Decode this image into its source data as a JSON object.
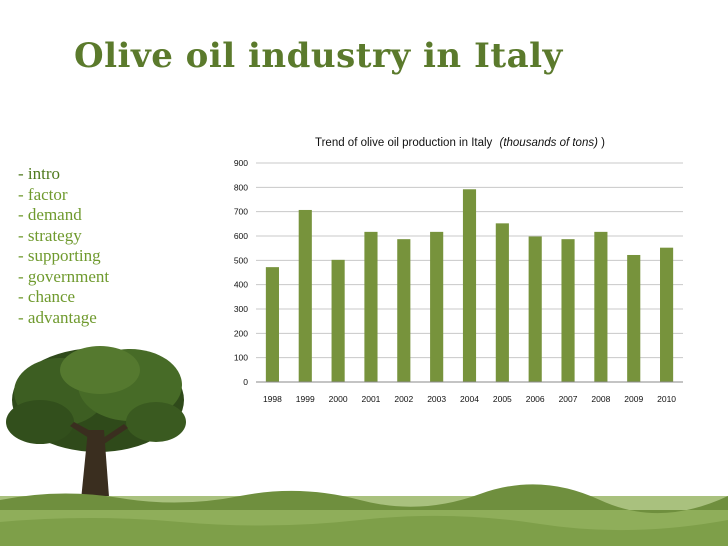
{
  "slide": {
    "title": "Olive oil industry in Italy"
  },
  "nav": {
    "items": [
      {
        "label": "- intro",
        "active": true
      },
      {
        "label": "- factor"
      },
      {
        "label": "- demand"
      },
      {
        "label": "- strategy"
      },
      {
        "label": "- supporting"
      },
      {
        "label": "- government"
      },
      {
        "label": "- chance"
      },
      {
        "label": "- advantage"
      }
    ]
  },
  "colors": {
    "title": "#5b7a2c",
    "nav": "#6f9a2e",
    "bar": "#77933c",
    "grid": "#c8c8c8"
  },
  "chart_data": {
    "type": "bar",
    "title": "Trend of olive oil production in Italy",
    "title_italic": "(thousands of tons)",
    "title_close": ")",
    "categories": [
      "1998",
      "1999",
      "2000",
      "2001",
      "2002",
      "2003",
      "2004",
      "2005",
      "2006",
      "2007",
      "2008",
      "2009",
      "2010"
    ],
    "values": [
      472,
      707,
      502,
      617,
      587,
      617,
      792,
      652,
      598,
      587,
      617,
      522,
      552
    ],
    "ylim": [
      0,
      900
    ],
    "yticks": [
      0,
      100,
      200,
      300,
      400,
      500,
      600,
      700,
      800,
      900
    ],
    "grid": true,
    "legend": false
  }
}
